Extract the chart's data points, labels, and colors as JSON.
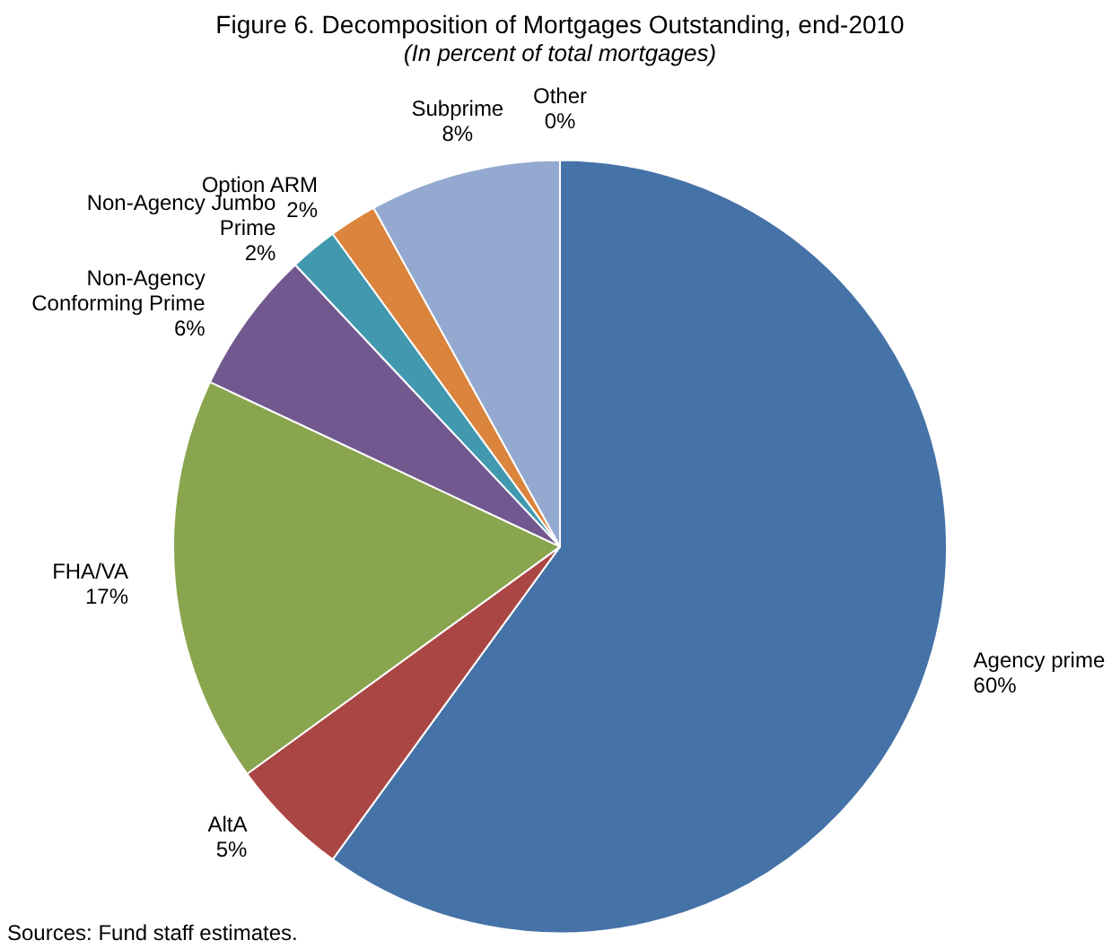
{
  "chart_data": {
    "type": "pie",
    "title": "Figure 6. Decomposition of Mortgages Outstanding, end-2010",
    "subtitle": "(In percent of total mortgages)",
    "categories": [
      "Agency prime",
      "AltA",
      "FHA/VA",
      "Non-Agency Conforming Prime",
      "Non-Agency Jumbo Prime",
      "Option ARM",
      "Subprime",
      "Other"
    ],
    "values": [
      60,
      5,
      17,
      6,
      2,
      2,
      8,
      0
    ],
    "value_labels": [
      "60%",
      "5%",
      "17%",
      "6%",
      "2%",
      "2%",
      "8%",
      "0%"
    ],
    "colors": [
      "#4572a7",
      "#aa4643",
      "#89a54e",
      "#71588f",
      "#4198af",
      "#db843d",
      "#93a9cf",
      "#d19392"
    ],
    "legend": false,
    "annotations": [
      "Sources: Fund staff estimates."
    ]
  }
}
